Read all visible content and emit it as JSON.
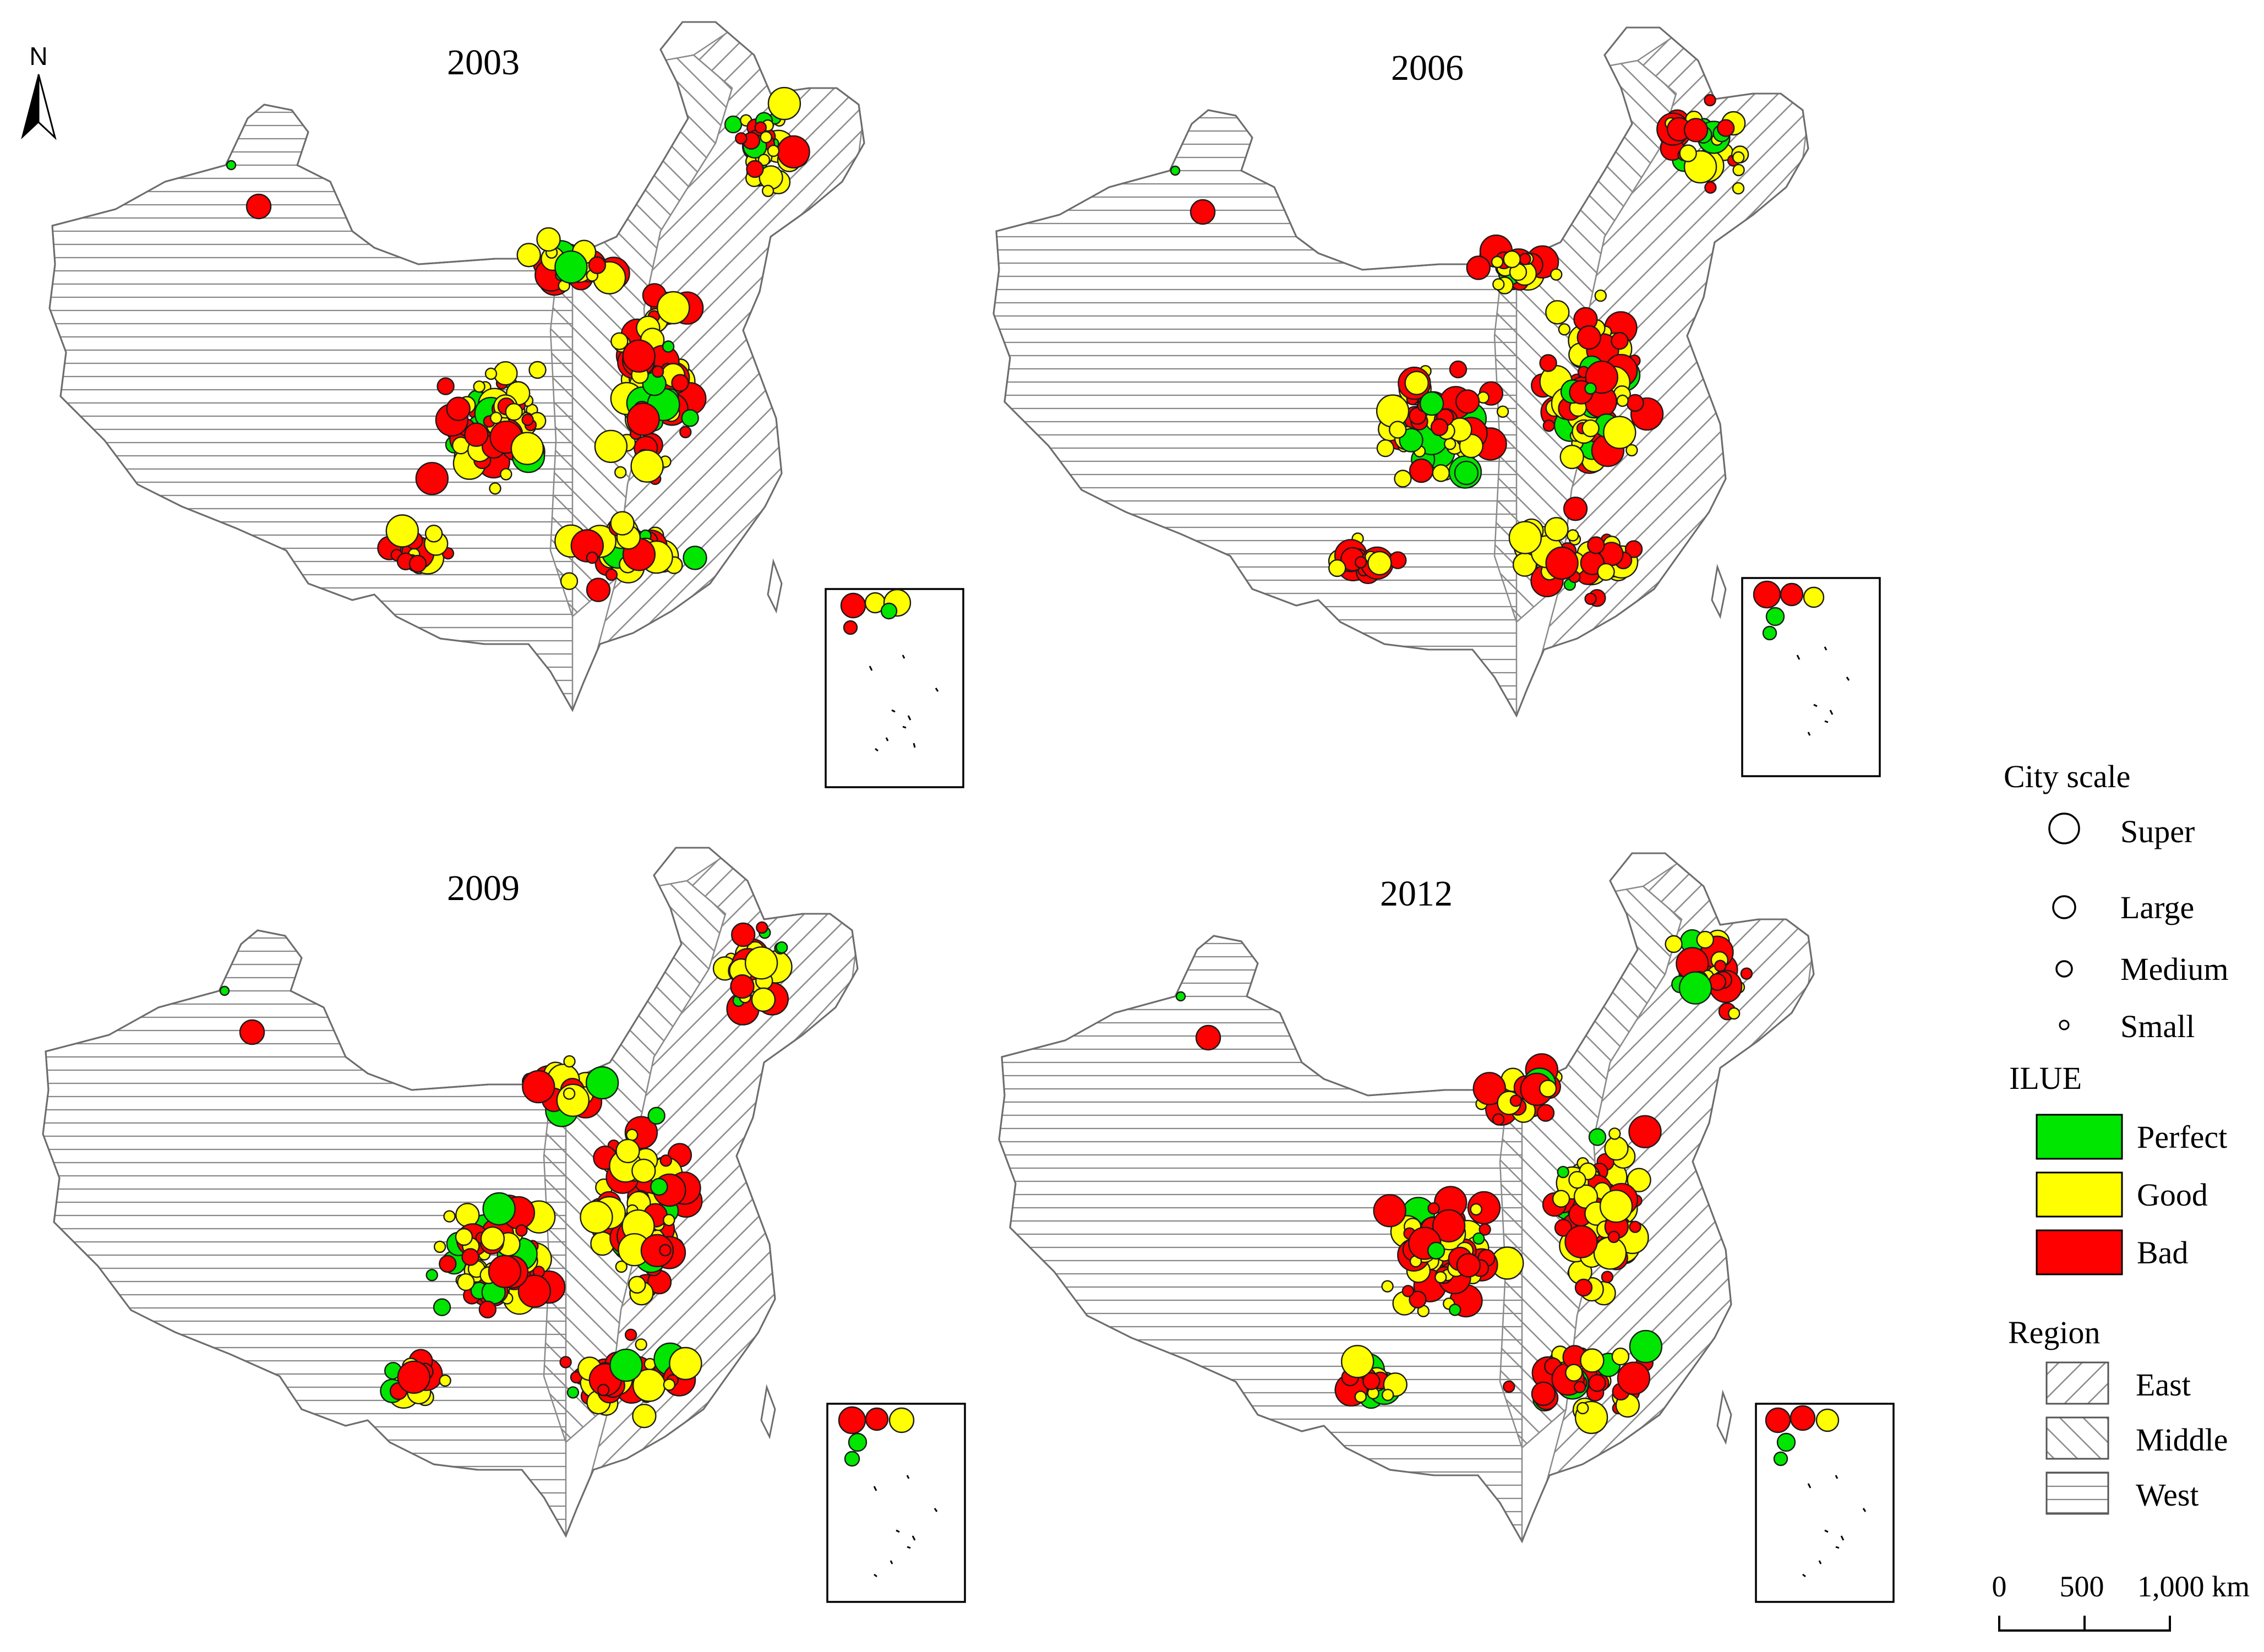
{
  "north_label": "N",
  "panels": [
    {
      "year": "2003"
    },
    {
      "year": "2006"
    },
    {
      "year": "2009"
    },
    {
      "year": "2012"
    }
  ],
  "legend": {
    "city_scale_title": "City scale",
    "scales": [
      "Super",
      "Large",
      "Medium",
      "Small"
    ],
    "ilue_title": "ILUE",
    "ilue_classes": [
      {
        "label": "Perfect",
        "color": "#00e600"
      },
      {
        "label": "Good",
        "color": "#ffff00"
      },
      {
        "label": "Bad",
        "color": "#ff0000"
      }
    ],
    "region_title": "Region",
    "regions": [
      "East",
      "Middle",
      "West"
    ]
  },
  "scale_bar": {
    "labels": [
      "0",
      "500",
      "1,000 km"
    ]
  }
}
